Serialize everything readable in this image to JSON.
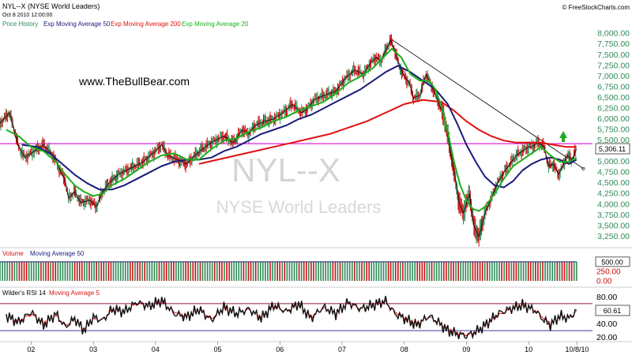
{
  "header": {
    "symbol_title": "NYL--X (NYSE World Leaders)",
    "datetime": "Oct 8 2010 12:00:00",
    "copyright": "© FreeStockCharts.com"
  },
  "watermark": {
    "symbol": "NYL--X",
    "name": "NYSE World Leaders",
    "site": "www.TheBullBear.com"
  },
  "legend": [
    {
      "label": "Price History",
      "color": "#2e8b57"
    },
    {
      "label": "Exp Moving Average 50",
      "color": "#1a1a7a"
    },
    {
      "label": "Exp Moving Average 200",
      "color": "#e01010"
    },
    {
      "label": "Exp Moving Average 20",
      "color": "#1ab01a"
    }
  ],
  "colors": {
    "price_up": "#2e8b57",
    "price_down": "#cc1111",
    "price_line": "#111111",
    "ema20": "#1ab01a",
    "ema50": "#1a1a7a",
    "ema200": "#e01010",
    "horizontal_line": "#dd22dd",
    "trendline": "#111111",
    "arrow": "#22aa22",
    "rsi_line": "#111111",
    "rsi_ma": "#e01010",
    "rsi_bounds": "#8a1a4a",
    "rsi_lower_bound": "#3a3a9a",
    "volume_up": "#2e8b57",
    "volume_down": "#cc1111",
    "axis_text_price": "#2e8b57"
  },
  "chart_data": [
    {
      "type": "line",
      "title": "NYL--X (NYSE World Leaders)",
      "x_ticks": [
        "02",
        "03",
        "04",
        "05",
        "06",
        "07",
        "08",
        "09",
        "10",
        "10/8/10"
      ],
      "y_ticks": [
        "8,000.00",
        "7,750.00",
        "7,500.00",
        "7,250.00",
        "7,000.00",
        "6,750.00",
        "6,500.00",
        "6,250.00",
        "6,000.00",
        "5,750.00",
        "5,500.00",
        "5,250.00",
        "5,000.00",
        "4,750.00",
        "4,500.00",
        "4,250.00",
        "4,000.00",
        "3,750.00",
        "3,500.00",
        "3,250.00"
      ],
      "ylim": [
        3100,
        8050
      ],
      "last_value_label": "5,306.11",
      "horizontal_line_value": 5425,
      "trendline": [
        [
          2007.78,
          7880
        ],
        [
          2010.88,
          4840
        ]
      ],
      "series": [
        {
          "name": "Price History",
          "x": [
            2001.5,
            2001.65,
            2001.72,
            2001.8,
            2001.9,
            2002.05,
            2002.2,
            2002.35,
            2002.45,
            2002.55,
            2002.6,
            2002.7,
            2002.8,
            2002.95,
            2003.05,
            2003.15,
            2003.25,
            2003.4,
            2003.6,
            2003.8,
            2004.0,
            2004.1,
            2004.2,
            2004.35,
            2004.5,
            2004.6,
            2004.75,
            2004.9,
            2005.1,
            2005.25,
            2005.4,
            2005.5,
            2005.6,
            2005.75,
            2005.9,
            2006.05,
            2006.2,
            2006.35,
            2006.45,
            2006.55,
            2006.7,
            2006.9,
            2007.05,
            2007.2,
            2007.35,
            2007.45,
            2007.55,
            2007.62,
            2007.7,
            2007.78,
            2007.85,
            2007.92,
            2008.0,
            2008.08,
            2008.15,
            2008.25,
            2008.35,
            2008.45,
            2008.55,
            2008.65,
            2008.72,
            2008.8,
            2008.88,
            2008.95,
            2009.05,
            2009.12,
            2009.2,
            2009.3,
            2009.4,
            2009.5,
            2009.6,
            2009.7,
            2009.8,
            2009.9,
            2010.0,
            2010.05,
            2010.15,
            2010.25,
            2010.32,
            2010.4,
            2010.48,
            2010.55,
            2010.62,
            2010.7,
            2010.77
          ],
          "values": [
            5900,
            6150,
            5800,
            5350,
            5100,
            5250,
            5400,
            5150,
            4850,
            4550,
            4150,
            4300,
            4050,
            4100,
            3950,
            4300,
            4500,
            4700,
            4850,
            5000,
            5250,
            5400,
            5150,
            5050,
            4950,
            5100,
            5300,
            5450,
            5600,
            5450,
            5750,
            5650,
            5850,
            5950,
            6000,
            6150,
            6350,
            6150,
            6250,
            6450,
            6550,
            6650,
            6950,
            7150,
            7050,
            7300,
            7450,
            7350,
            7600,
            7850,
            7600,
            7250,
            7000,
            6850,
            6500,
            6550,
            7050,
            6750,
            6400,
            6000,
            5450,
            4800,
            4050,
            3800,
            4250,
            3500,
            3250,
            3800,
            4150,
            4500,
            4750,
            4950,
            5150,
            5250,
            5350,
            5350,
            5450,
            5350,
            4900,
            4950,
            4700,
            4900,
            5150,
            5050,
            5306
          ]
        },
        {
          "name": "Exp Moving Average 20",
          "x": [
            2001.6,
            2001.8,
            2002.0,
            2002.2,
            2002.4,
            2002.55,
            2002.7,
            2002.85,
            2003.0,
            2003.15,
            2003.3,
            2003.5,
            2003.7,
            2003.9,
            2004.1,
            2004.3,
            2004.5,
            2004.7,
            2004.9,
            2005.1,
            2005.3,
            2005.5,
            2005.7,
            2005.9,
            2006.1,
            2006.3,
            2006.5,
            2006.7,
            2006.9,
            2007.1,
            2007.3,
            2007.5,
            2007.7,
            2007.8,
            2007.95,
            2008.1,
            2008.25,
            2008.4,
            2008.5,
            2008.6,
            2008.7,
            2008.8,
            2008.9,
            2009.0,
            2009.1,
            2009.2,
            2009.3,
            2009.45,
            2009.6,
            2009.75,
            2009.9,
            2010.05,
            2010.2,
            2010.35,
            2010.5,
            2010.65,
            2010.77
          ],
          "values": [
            5750,
            5600,
            5350,
            5250,
            5000,
            4700,
            4450,
            4300,
            4200,
            4250,
            4450,
            4600,
            4800,
            5000,
            5150,
            5200,
            5050,
            5050,
            5300,
            5500,
            5550,
            5700,
            5800,
            5950,
            6050,
            6200,
            6300,
            6400,
            6600,
            6850,
            7000,
            7200,
            7500,
            7650,
            7450,
            7050,
            6900,
            6900,
            6700,
            6300,
            5700,
            5000,
            4450,
            4100,
            3900,
            3850,
            3950,
            4250,
            4600,
            4900,
            5050,
            5200,
            5350,
            5150,
            5000,
            5000,
            5100
          ]
        },
        {
          "name": "Exp Moving Average 50",
          "x": [
            2001.85,
            2002.1,
            2002.3,
            2002.5,
            2002.7,
            2002.9,
            2003.1,
            2003.3,
            2003.5,
            2003.7,
            2003.9,
            2004.1,
            2004.3,
            2004.5,
            2004.7,
            2004.9,
            2005.1,
            2005.3,
            2005.5,
            2005.7,
            2005.9,
            2006.1,
            2006.3,
            2006.5,
            2006.7,
            2006.9,
            2007.1,
            2007.3,
            2007.5,
            2007.7,
            2007.9,
            2008.1,
            2008.3,
            2008.5,
            2008.7,
            2008.85,
            2009.0,
            2009.15,
            2009.3,
            2009.45,
            2009.6,
            2009.75,
            2009.9,
            2010.05,
            2010.2,
            2010.35,
            2010.5,
            2010.65,
            2010.77
          ],
          "values": [
            5400,
            5350,
            5200,
            4950,
            4700,
            4500,
            4350,
            4350,
            4450,
            4600,
            4750,
            4900,
            5000,
            5050,
            5050,
            5100,
            5250,
            5350,
            5500,
            5650,
            5750,
            5850,
            6000,
            6100,
            6250,
            6400,
            6550,
            6700,
            6900,
            7100,
            7250,
            7100,
            6900,
            6700,
            6350,
            5900,
            5400,
            5000,
            4650,
            4450,
            4400,
            4550,
            4800,
            4950,
            5050,
            5100,
            5050,
            4950,
            5050
          ]
        },
        {
          "name": "Exp Moving Average 200",
          "x": [
            2004.7,
            2005.0,
            2005.3,
            2005.6,
            2005.9,
            2006.2,
            2006.5,
            2006.8,
            2007.1,
            2007.4,
            2007.7,
            2008.0,
            2008.3,
            2008.6,
            2008.8,
            2009.0,
            2009.2,
            2009.4,
            2009.6,
            2009.8,
            2010.0,
            2010.2,
            2010.4,
            2010.6,
            2010.77
          ],
          "values": [
            4950,
            5050,
            5150,
            5250,
            5350,
            5450,
            5550,
            5650,
            5800,
            5950,
            6150,
            6350,
            6450,
            6400,
            6200,
            5950,
            5750,
            5600,
            5500,
            5450,
            5450,
            5450,
            5400,
            5350,
            5350
          ]
        }
      ]
    },
    {
      "type": "bar",
      "title": "Volume",
      "legend": [
        "Volume",
        "Moving Average 50"
      ],
      "y_ticks": [
        "500.00",
        "250.00",
        "0.00"
      ],
      "ylim": [
        0,
        600
      ],
      "bar_count": 240,
      "typical_value": 500
    },
    {
      "type": "line",
      "title": "Wilder's RSI 14",
      "legend": [
        "Wilder's RSI 14",
        "Moving Average 5"
      ],
      "y_ticks": [
        "80.00",
        "60.00",
        "40.00",
        "20.00"
      ],
      "ylim": [
        15,
        85
      ],
      "bounds": [
        70,
        30
      ],
      "last_value_label": "60.61",
      "series": [
        {
          "name": "Wilder's RSI 14",
          "x": [
            2001.6,
            2001.8,
            2002.0,
            2002.2,
            2002.4,
            2002.55,
            2002.7,
            2002.85,
            2003.0,
            2003.15,
            2003.3,
            2003.5,
            2003.7,
            2003.9,
            2004.1,
            2004.3,
            2004.5,
            2004.7,
            2004.9,
            2005.1,
            2005.3,
            2005.5,
            2005.7,
            2005.9,
            2006.1,
            2006.3,
            2006.5,
            2006.7,
            2006.9,
            2007.1,
            2007.3,
            2007.5,
            2007.7,
            2007.85,
            2008.0,
            2008.2,
            2008.4,
            2008.55,
            2008.7,
            2008.85,
            2009.0,
            2009.15,
            2009.3,
            2009.5,
            2009.7,
            2009.9,
            2010.1,
            2010.25,
            2010.35,
            2010.5,
            2010.65,
            2010.77
          ],
          "values": [
            52,
            42,
            58,
            38,
            55,
            35,
            48,
            30,
            50,
            45,
            62,
            58,
            72,
            66,
            75,
            55,
            50,
            62,
            45,
            65,
            55,
            62,
            48,
            68,
            58,
            70,
            48,
            65,
            55,
            72,
            62,
            68,
            74,
            55,
            48,
            38,
            52,
            42,
            30,
            25,
            22,
            28,
            38,
            55,
            62,
            68,
            60,
            45,
            38,
            52,
            48,
            60
          ]
        },
        {
          "name": "Moving Average 5",
          "x": [
            2001.6,
            2001.8,
            2002.0,
            2002.2,
            2002.4,
            2002.55,
            2002.7,
            2002.85,
            2003.0,
            2003.15,
            2003.3,
            2003.5,
            2003.7,
            2003.9,
            2004.1,
            2004.3,
            2004.5,
            2004.7,
            2004.9,
            2005.1,
            2005.3,
            2005.5,
            2005.7,
            2005.9,
            2006.1,
            2006.3,
            2006.5,
            2006.7,
            2006.9,
            2007.1,
            2007.3,
            2007.5,
            2007.7,
            2007.85,
            2008.0,
            2008.2,
            2008.4,
            2008.55,
            2008.7,
            2008.85,
            2009.0,
            2009.15,
            2009.3,
            2009.5,
            2009.7,
            2009.9,
            2010.1,
            2010.25,
            2010.35,
            2010.5,
            2010.65,
            2010.77
          ],
          "values": [
            50,
            45,
            54,
            42,
            52,
            38,
            46,
            33,
            47,
            46,
            59,
            59,
            70,
            67,
            72,
            58,
            52,
            60,
            48,
            62,
            56,
            61,
            51,
            65,
            59,
            68,
            51,
            63,
            57,
            70,
            63,
            67,
            72,
            58,
            50,
            41,
            50,
            43,
            33,
            27,
            24,
            29,
            37,
            52,
            61,
            66,
            61,
            48,
            41,
            50,
            49,
            58
          ]
        }
      ]
    }
  ]
}
